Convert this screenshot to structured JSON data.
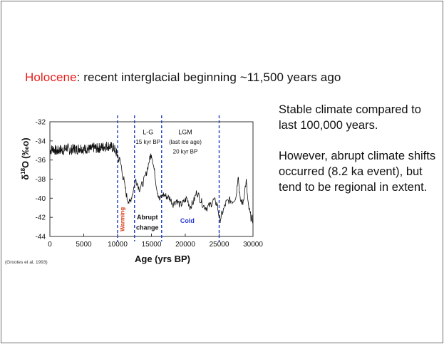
{
  "slide": {
    "heading_highlight": "Holocene",
    "heading_rest": ": recent interglacial beginning ~11,500 years ago",
    "bullets": [
      "Stable climate compared to last 100,000 years.",
      "However, abrupt climate shifts occurred (8.2 ka event), but tend to be regional in extent."
    ],
    "citation": "(Grootes et al, 1993)"
  },
  "colors": {
    "highlight": "#e8201c",
    "dashed_lines": "#1f3fbf",
    "warming": "#d9421a",
    "cold": "#2a3ccf",
    "series": "#111111"
  },
  "chart_data": {
    "type": "line",
    "xlabel": "Age (yrs BP)",
    "ylabel": "δ18O (‰)",
    "ylabel_parts": {
      "delta": "δ",
      "sup": "18",
      "o": "O",
      "unit": "(‰o)"
    },
    "xlim": [
      0,
      30000
    ],
    "ylim": [
      -44,
      -32
    ],
    "x_ticks": [
      0,
      5000,
      10000,
      15000,
      20000,
      25000,
      30000
    ],
    "y_ticks": [
      -32,
      -34,
      -36,
      -38,
      -40,
      -42,
      -44
    ],
    "vertical_lines": [
      10000,
      12500,
      16500,
      25000
    ],
    "annotations": [
      {
        "text": "L-G",
        "x": 14500,
        "y": -33.3
      },
      {
        "text": "15 kyr BP",
        "x": 14500,
        "y": -34.3
      },
      {
        "text": "LGM",
        "x": 20000,
        "y": -33.3
      },
      {
        "text": "(last ice age)",
        "x": 20000,
        "y": -34.3
      },
      {
        "text": "20 kyr BP",
        "x": 20000,
        "y": -35.3
      },
      {
        "text": "Abrupt",
        "x": 14400,
        "y": -42.2
      },
      {
        "text": "change",
        "x": 14400,
        "y": -43.3
      },
      {
        "text": "Cold",
        "x": 20300,
        "y": -42.6
      }
    ],
    "warming_label": "Warming",
    "series": [
      {
        "values": [
          [
            0,
            -35.0
          ],
          [
            500,
            -34.8
          ],
          [
            1000,
            -35.1
          ],
          [
            1500,
            -34.9
          ],
          [
            2000,
            -35.0
          ],
          [
            2500,
            -34.7
          ],
          [
            3000,
            -35.0
          ],
          [
            3500,
            -34.8
          ],
          [
            4000,
            -34.9
          ],
          [
            4500,
            -34.7
          ],
          [
            5000,
            -34.9
          ],
          [
            5500,
            -34.8
          ],
          [
            6000,
            -34.9
          ],
          [
            6500,
            -34.7
          ],
          [
            7000,
            -34.8
          ],
          [
            7500,
            -34.7
          ],
          [
            8000,
            -34.6
          ],
          [
            8500,
            -34.5
          ],
          [
            9000,
            -34.6
          ],
          [
            9500,
            -34.8
          ],
          [
            10000,
            -35.5
          ],
          [
            10500,
            -36.5
          ],
          [
            11000,
            -38.5
          ],
          [
            11400,
            -40.0
          ],
          [
            11800,
            -40.5
          ],
          [
            12200,
            -39.5
          ],
          [
            12700,
            -38.0
          ],
          [
            13200,
            -39.0
          ],
          [
            13700,
            -38.5
          ],
          [
            14200,
            -37.5
          ],
          [
            14700,
            -36.0
          ],
          [
            15000,
            -35.3
          ],
          [
            15400,
            -37.0
          ],
          [
            15800,
            -39.0
          ],
          [
            16200,
            -40.2
          ],
          [
            16700,
            -39.6
          ],
          [
            17200,
            -39.8
          ],
          [
            17700,
            -40.0
          ],
          [
            18200,
            -40.6
          ],
          [
            18700,
            -40.2
          ],
          [
            19200,
            -40.7
          ],
          [
            19700,
            -40.5
          ],
          [
            20200,
            -40.0
          ],
          [
            20700,
            -40.9
          ],
          [
            21200,
            -40.4
          ],
          [
            21700,
            -39.3
          ],
          [
            22200,
            -40.1
          ],
          [
            22700,
            -40.8
          ],
          [
            23200,
            -41.0
          ],
          [
            23700,
            -40.7
          ],
          [
            24200,
            -40.2
          ],
          [
            24700,
            -40.6
          ],
          [
            25100,
            -42.3
          ],
          [
            25500,
            -41.5
          ],
          [
            26000,
            -40.5
          ],
          [
            26500,
            -40.2
          ],
          [
            27000,
            -40.3
          ],
          [
            27500,
            -39.8
          ],
          [
            27800,
            -37.5
          ],
          [
            28100,
            -40.2
          ],
          [
            28500,
            -40.5
          ],
          [
            29000,
            -38.2
          ],
          [
            29300,
            -40.8
          ],
          [
            29700,
            -42.0
          ],
          [
            30000,
            -42.3
          ]
        ]
      }
    ]
  }
}
